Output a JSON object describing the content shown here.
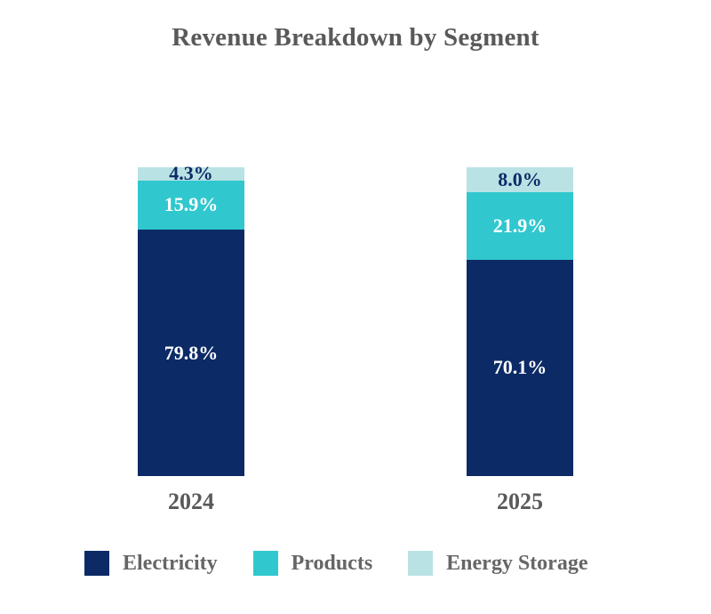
{
  "title": "Revenue Breakdown by Segment",
  "colors": {
    "electricity": "#0c2a66",
    "products": "#30c8ce",
    "energy_storage": "#b9e2e4",
    "title_text": "#595959",
    "category_text": "#595959",
    "legend_text": "#666666",
    "label_on_dark_segment": "#ffffff",
    "label_on_light_segment": "#0c2a66",
    "background": "#ffffff"
  },
  "chart_data": {
    "type": "bar",
    "subtype": "stacked-100-percent",
    "title": "Revenue Breakdown by Segment",
    "categories": [
      "2024",
      "2025"
    ],
    "series": [
      {
        "name": "Electricity",
        "color": "#0c2a66",
        "label_color": "#ffffff",
        "values": [
          79.8,
          70.1
        ],
        "labels": [
          "79.8%",
          "70.1%"
        ]
      },
      {
        "name": "Products",
        "color": "#30c8ce",
        "label_color": "#ffffff",
        "values": [
          15.9,
          21.9
        ],
        "labels": [
          "15.9%",
          "21.9%"
        ]
      },
      {
        "name": "Energy Storage",
        "color": "#b9e2e4",
        "label_color": "#0c2a66",
        "values": [
          4.3,
          8.0
        ],
        "labels": [
          "4.3%",
          "8.0%"
        ]
      }
    ],
    "stack_order_top_to_bottom": [
      "Energy Storage",
      "Products",
      "Electricity"
    ],
    "value_axis_range": [
      0,
      100
    ],
    "grid": false,
    "axes_visible": false,
    "legend_position": "bottom"
  },
  "legend": {
    "items": [
      {
        "label": "Electricity",
        "color": "#0c2a66"
      },
      {
        "label": "Products",
        "color": "#30c8ce"
      },
      {
        "label": "Energy Storage",
        "color": "#b9e2e4"
      }
    ]
  }
}
